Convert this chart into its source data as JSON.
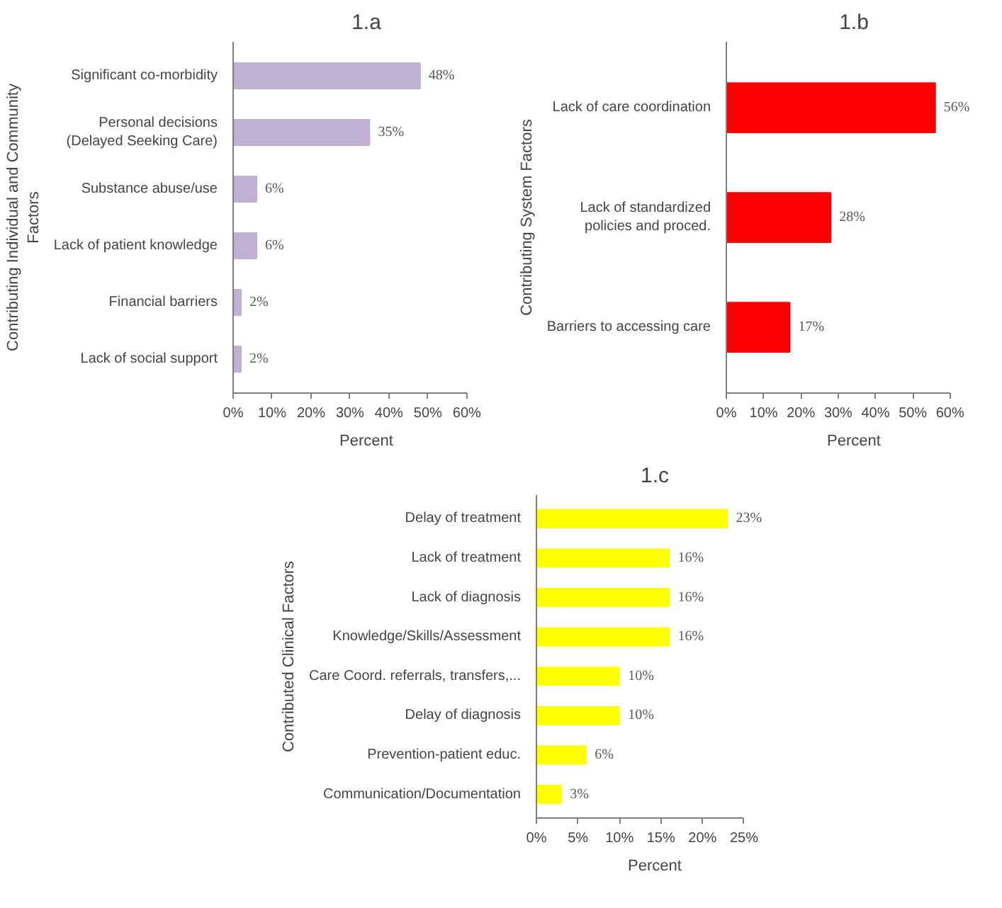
{
  "chart_data": [
    {
      "type": "bar",
      "orientation": "horizontal",
      "title": "1.a",
      "xlabel": "Percent",
      "ylabel": "Contributing Individual and Community Factors",
      "categories": [
        "Significant co-morbidity",
        "Personal decisions (Delayed Seeking Care)",
        "Substance abuse/use",
        "Lack of patient knowledge",
        "Financial barriers",
        "Lack of social support"
      ],
      "values": [
        48,
        35,
        6,
        6,
        2,
        2
      ],
      "color": "#bfb0d4",
      "value_labels": [
        "48%",
        "35%",
        "6%",
        "6%",
        "2%",
        "2%"
      ],
      "xlim": [
        0,
        60
      ],
      "xticks": [
        {
          "value": 0,
          "label": "0%"
        },
        {
          "value": 10,
          "label": "10%"
        },
        {
          "value": 20,
          "label": "20%"
        },
        {
          "value": 30,
          "label": "30%"
        },
        {
          "value": 40,
          "label": "40%"
        },
        {
          "value": 50,
          "label": "50%"
        },
        {
          "value": 60,
          "label": "60%"
        }
      ],
      "grid": false
    },
    {
      "type": "bar",
      "orientation": "horizontal",
      "title": "1.b",
      "xlabel": "Percent",
      "ylabel": "Contributing System Factors",
      "categories": [
        "Lack of care coordination",
        "Lack of standardized policies and proced.",
        "Barriers to accessing care"
      ],
      "values": [
        56,
        28,
        17
      ],
      "color": "#ff0000",
      "value_labels": [
        "56%",
        "28%",
        "17%"
      ],
      "xlim": [
        0,
        60
      ],
      "xticks": [
        {
          "value": 0,
          "label": "0%"
        },
        {
          "value": 10,
          "label": "10%"
        },
        {
          "value": 20,
          "label": "20%"
        },
        {
          "value": 30,
          "label": "30%"
        },
        {
          "value": 40,
          "label": "40%"
        },
        {
          "value": 50,
          "label": "50%"
        },
        {
          "value": 60,
          "label": "60%"
        }
      ],
      "grid": false
    },
    {
      "type": "bar",
      "orientation": "horizontal",
      "title": "1.c",
      "xlabel": "Percent",
      "ylabel": "Contributed Clinical Factors",
      "categories": [
        "Delay of treatment",
        "Lack of treatment",
        "Lack of diagnosis",
        "Knowledge/Skills/Assessment",
        "Care Coord. referrals, transfers,...",
        "Delay of diagnosis",
        "Prevention-patient educ.",
        "Communication/Documentation"
      ],
      "values": [
        23,
        16,
        16,
        16,
        10,
        10,
        6,
        3
      ],
      "color": "#ffff00",
      "value_labels": [
        "23%",
        "16%",
        "16%",
        "16%",
        "10%",
        "10%",
        "6%",
        "3%"
      ],
      "xlim": [
        0,
        25
      ],
      "xticks": [
        {
          "value": 0,
          "label": "0%"
        },
        {
          "value": 5,
          "label": "5%"
        },
        {
          "value": 10,
          "label": "10%"
        },
        {
          "value": 15,
          "label": "15%"
        },
        {
          "value": 20,
          "label": "20%"
        },
        {
          "value": 25,
          "label": "25%"
        }
      ],
      "grid": false
    }
  ]
}
